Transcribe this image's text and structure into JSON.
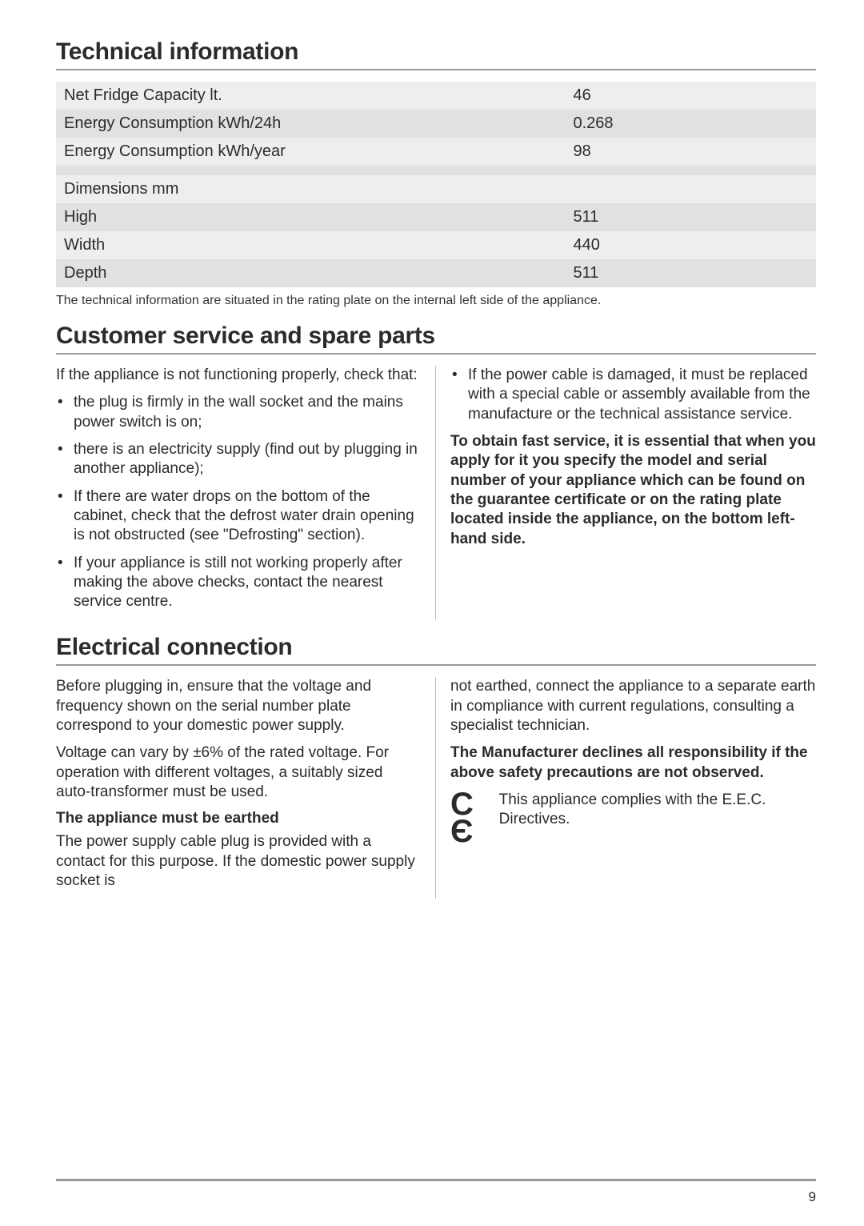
{
  "sections": {
    "tech_info": {
      "title": "Technical information",
      "table": {
        "row_colors": {
          "dark": "#e1e1e1",
          "light": "#eeeeee",
          "blank_dark": "#e1e1e1"
        },
        "rows": [
          {
            "label": "Net Fridge Capacity lt.",
            "value": "46",
            "shade": "light"
          },
          {
            "label": "Energy Consumption kWh/24h",
            "value": "0.268",
            "shade": "dark"
          },
          {
            "label": "Energy Consumption kWh/year",
            "value": "98",
            "shade": "light"
          },
          {
            "label": "",
            "value": "",
            "shade": "dark"
          },
          {
            "label": "Dimensions mm",
            "value": "",
            "shade": "light"
          },
          {
            "label": "High",
            "value": "511",
            "shade": "dark"
          },
          {
            "label": "Width",
            "value": "440",
            "shade": "light"
          },
          {
            "label": "Depth",
            "value": "511",
            "shade": "dark"
          }
        ]
      },
      "caption": "The technical information are situated in the rating plate on the internal left side of the appliance."
    },
    "customer_service": {
      "title": "Customer service and spare parts",
      "left": {
        "intro": "If the appliance is not functioning properly, check that:",
        "bullets": [
          "the plug is firmly in the wall socket and the mains power switch is on;",
          "there is an electricity supply (find out by plugging in another appliance);",
          "If there are water drops on the bottom of the cabinet, check that the defrost water drain opening is not obstructed (see \"Defrosting\" section).",
          "If your appliance is still not working properly after making the above checks, contact the nearest service centre."
        ]
      },
      "right": {
        "bullets": [
          "If the power cable is damaged, it must be replaced with a special cable or assembly available from the manufacture or the technical assistance service."
        ],
        "bold_para": "To obtain fast service, it is essential that when you apply for it you specify the model and serial number of your appliance which can be found on the guarantee certificate or on the rating plate located inside the appliance, on the bottom left-hand side."
      }
    },
    "electrical": {
      "title": "Electrical connection",
      "left": {
        "para1": "Before plugging in, ensure that the voltage and frequency shown on the serial number plate correspond to your domestic power supply.",
        "para2": "Voltage can vary by ±6% of the rated voltage. For operation with different voltages, a suitably sized auto-transformer must be used.",
        "sub_head": "The appliance must be earthed",
        "para3": "The power supply cable plug is provided with a contact for this purpose. If the domestic power supply socket is"
      },
      "right": {
        "para1": "not earthed, connect the appliance to a separate earth in compliance with current regulations, consulting a specialist technician.",
        "bold_para": "The Manufacturer declines all responsibility if the above safety precautions are not observed.",
        "ce_text": "This appliance complies with the E.E.C. Directives."
      }
    }
  },
  "page_number": "9"
}
